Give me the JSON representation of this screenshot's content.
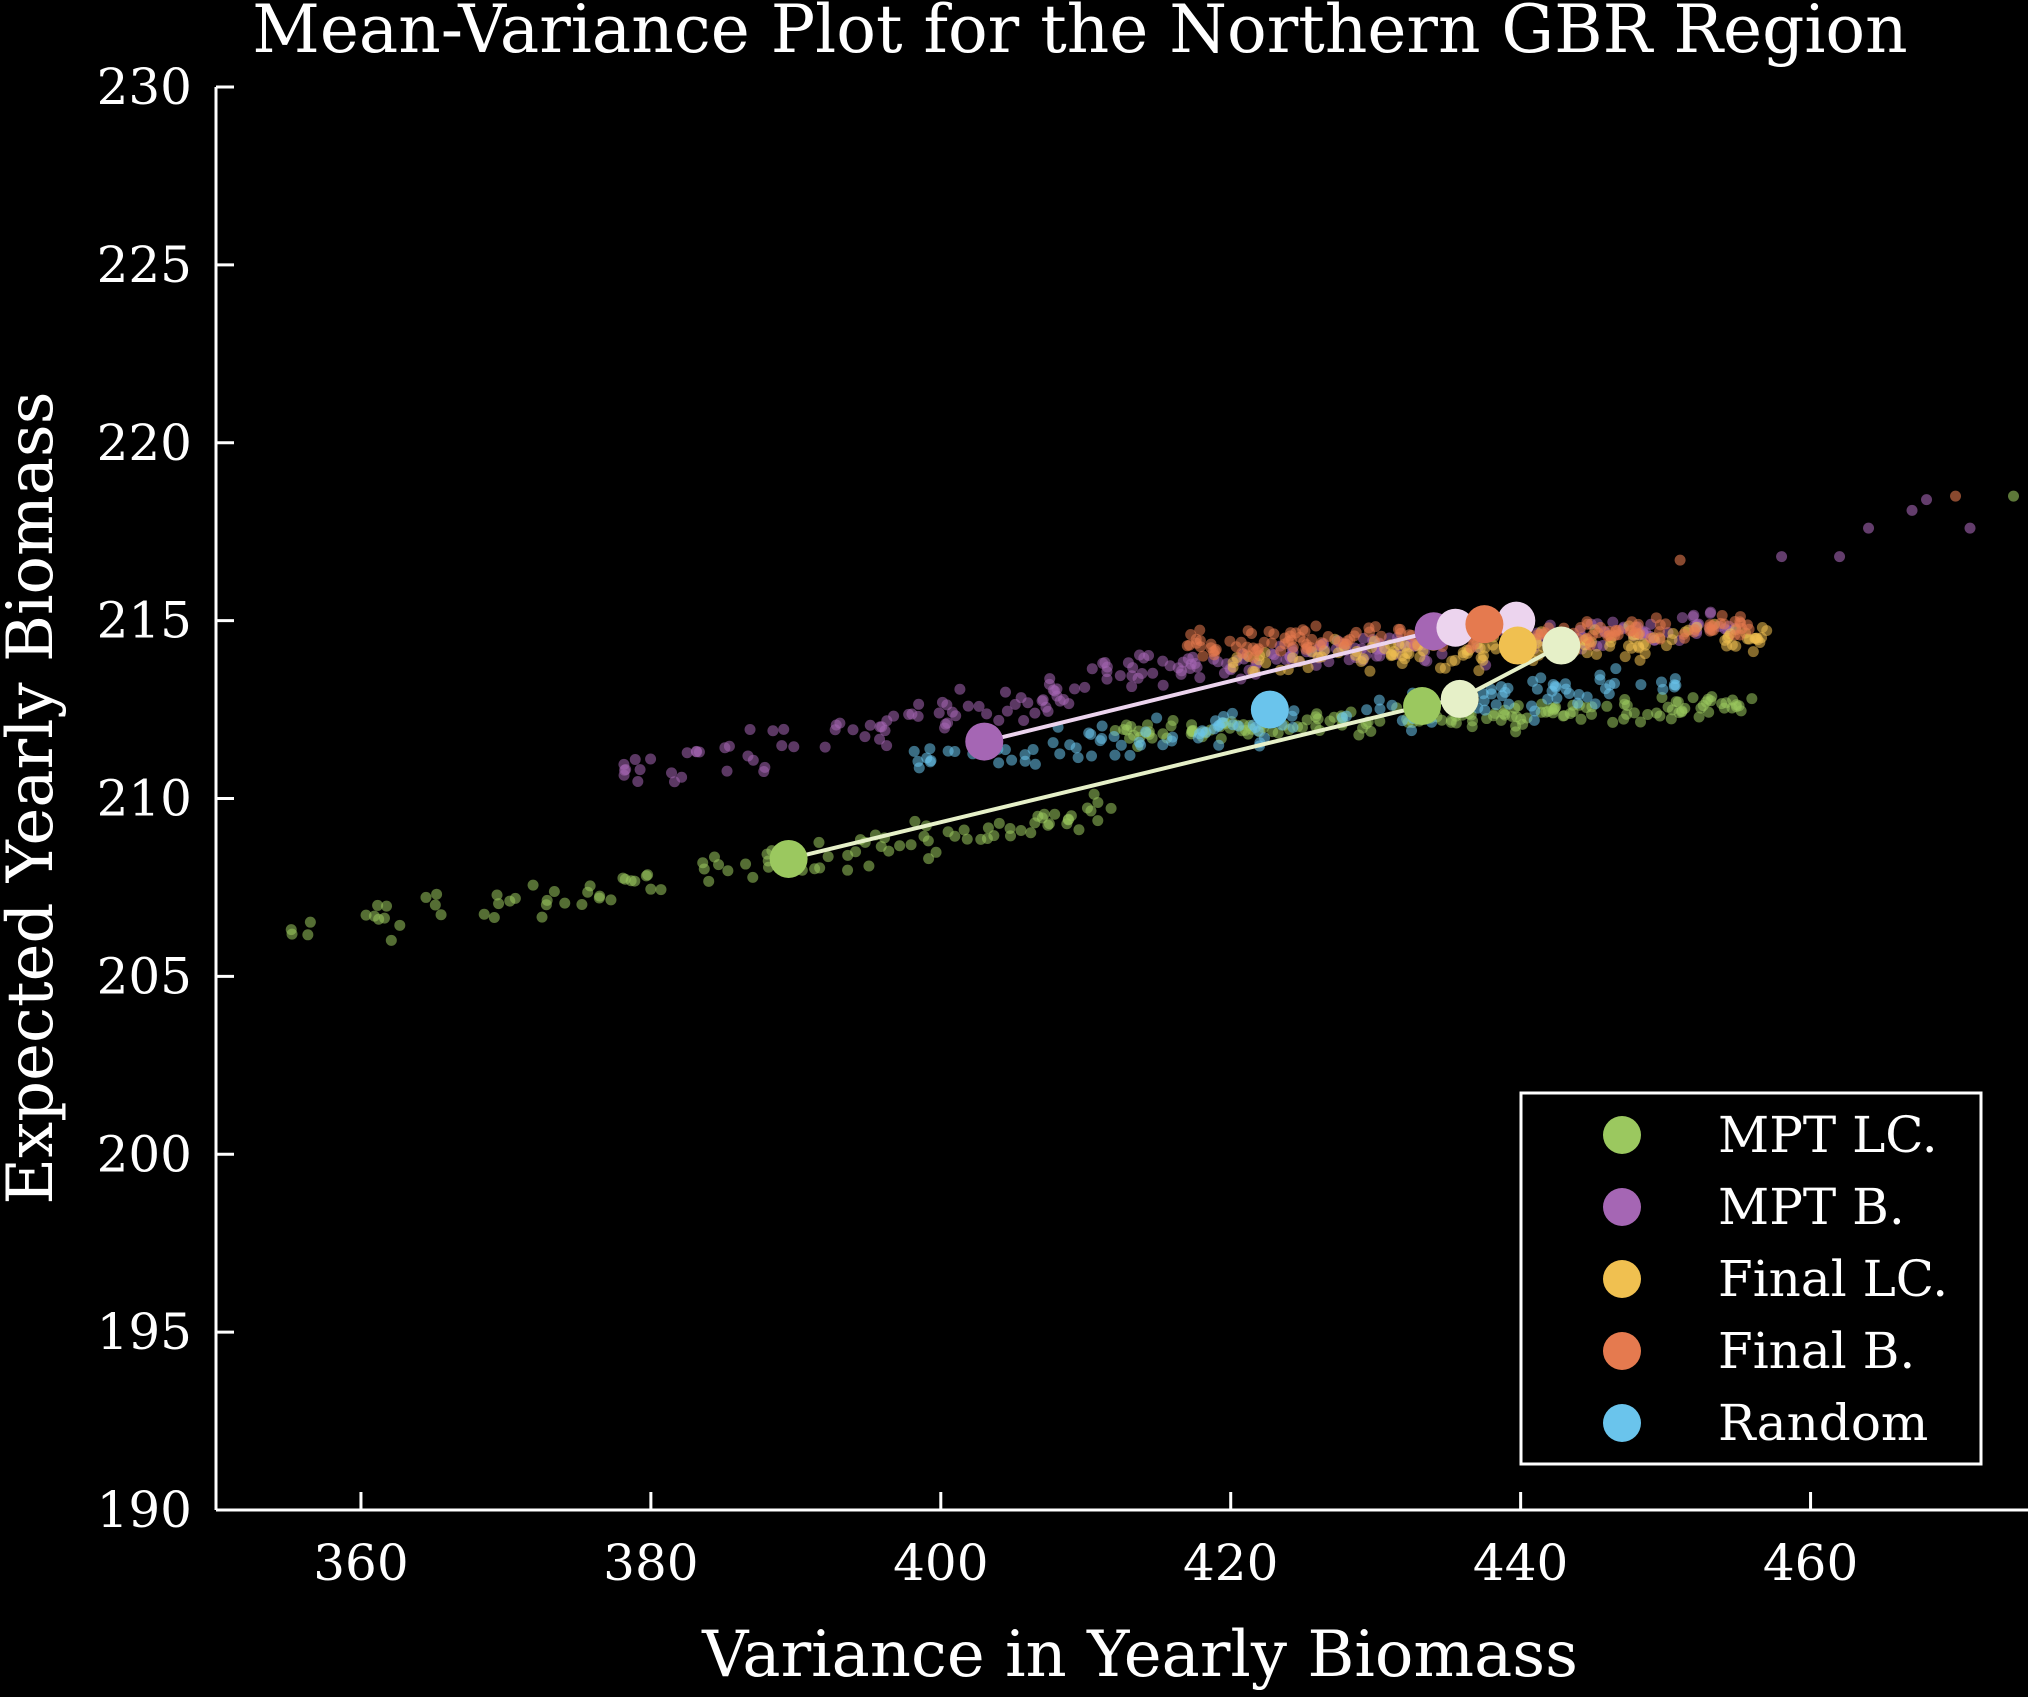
{
  "chart_data": {
    "type": "scatter",
    "title": "Mean-Variance Plot for the Northern GBR Region",
    "xlabel": "Variance in Yearly Biomass",
    "ylabel": "Expected Yearly Biomass",
    "xlim": [
      350,
      475
    ],
    "ylim": [
      190,
      230
    ],
    "xticks": [
      "360",
      "380",
      "400",
      "420",
      "440",
      "460"
    ],
    "yticks": [
      "190",
      "195",
      "200",
      "205",
      "210",
      "215",
      "220",
      "225",
      "230"
    ],
    "grid": false,
    "legend_position": "bottom-right",
    "background": "#000000",
    "series": [
      {
        "name": "MPT LC.",
        "color": "#9bc85f",
        "cluster_x": [
          354,
          456
        ],
        "cluster_y": [
          207,
          213
        ],
        "frontier": [
          [
            389.5,
            208.3
          ],
          [
            433.2,
            212.6
          ],
          [
            435.8,
            212.8
          ],
          [
            442.8,
            214.3
          ]
        ],
        "frontier_color": "#e6f0c8"
      },
      {
        "name": "MPT B.",
        "color": "#a566b4",
        "cluster_x": [
          377,
          472
        ],
        "cluster_y": [
          210.5,
          218.5
        ],
        "frontier": [
          [
            403,
            211.6
          ],
          [
            434,
            214.7
          ],
          [
            435.5,
            214.8
          ],
          [
            439.7,
            215.0
          ]
        ],
        "frontier_color": "#ecd4ee"
      },
      {
        "name": "Final LC.",
        "color": "#f0c050",
        "cluster_x": [
          420,
          458
        ],
        "cluster_y": [
          212.5,
          215.5
        ],
        "highlight": [
          [
            439.8,
            214.3
          ]
        ]
      },
      {
        "name": "Final B.",
        "color": "#e57a4f",
        "cluster_x": [
          418,
          470
        ],
        "cluster_y": [
          213.5,
          218.3
        ],
        "highlight": [
          [
            437.5,
            214.9
          ]
        ]
      },
      {
        "name": "Random",
        "color": "#6ac4ec",
        "cluster_x": [
          398,
          451
        ],
        "cluster_y": [
          209.5,
          214
        ],
        "highlight": [
          [
            422.7,
            212.5
          ]
        ]
      }
    ]
  }
}
